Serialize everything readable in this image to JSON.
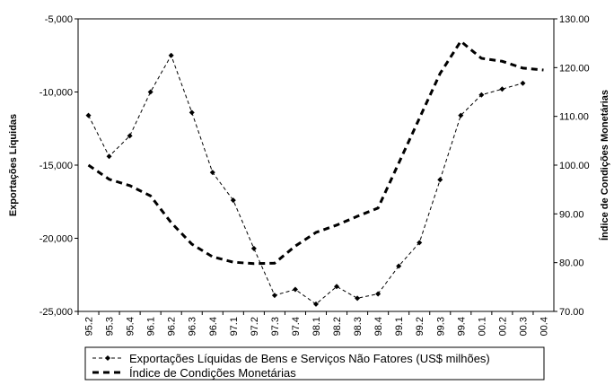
{
  "chart_data": {
    "type": "line",
    "categories": [
      "95.2",
      "95.3",
      "95.4",
      "96.1",
      "96.2",
      "96.3",
      "96.4",
      "97.1",
      "97.2",
      "97.3",
      "97.4",
      "98.1",
      "98.2",
      "98.3",
      "98.4",
      "99.1",
      "99.2",
      "99.3",
      "99.4",
      "00.1",
      "00.2",
      "00.3",
      "00.4"
    ],
    "y_label": "Exportações Líquidas",
    "y2_label": "Índice de Condições Monetárias",
    "ylim": [
      -25000,
      -5000
    ],
    "yticks": [
      {
        "value": -25000,
        "label": "-25,000"
      },
      {
        "value": -20000,
        "label": "-20,000"
      },
      {
        "value": -15000,
        "label": "-15,000"
      },
      {
        "value": -10000,
        "label": "-10,000"
      },
      {
        "value": -5000,
        "label": "-5,000"
      }
    ],
    "y2lim": [
      70,
      130
    ],
    "y2ticks": [
      {
        "value": 70,
        "label": "70.00"
      },
      {
        "value": 80,
        "label": "80.00"
      },
      {
        "value": 90,
        "label": "90.00"
      },
      {
        "value": 100,
        "label": "100.00"
      },
      {
        "value": 110,
        "label": "110.00"
      },
      {
        "value": 120,
        "label": "120.00"
      },
      {
        "value": 130,
        "label": "130.00"
      }
    ],
    "series": [
      {
        "name": "Exportações Líquidas de Bens e Serviços Não Fatores (US$ milhões)",
        "color": "#000000",
        "marker": "diamond",
        "values": [
          -11600,
          -14400,
          -13000,
          -10000,
          -7500,
          -11400,
          -15500,
          -17400,
          -20700,
          -23900,
          -23500,
          -24500,
          -23300,
          -24100,
          -23800,
          -21900,
          -20300,
          -16000,
          -11600,
          -10200,
          -9800,
          -9400,
          null
        ]
      },
      {
        "name": "Índice de Condições Monetárias",
        "color": "#000000",
        "axis": "y2",
        "values": [
          100.0,
          97.1,
          95.8,
          93.7,
          88.2,
          83.8,
          81.2,
          80.1,
          79.8,
          79.9,
          83.4,
          86.2,
          87.7,
          89.5,
          91.2,
          100.4,
          109.6,
          118.8,
          125.4,
          121.9,
          121.3,
          119.9,
          119.5
        ]
      }
    ]
  }
}
